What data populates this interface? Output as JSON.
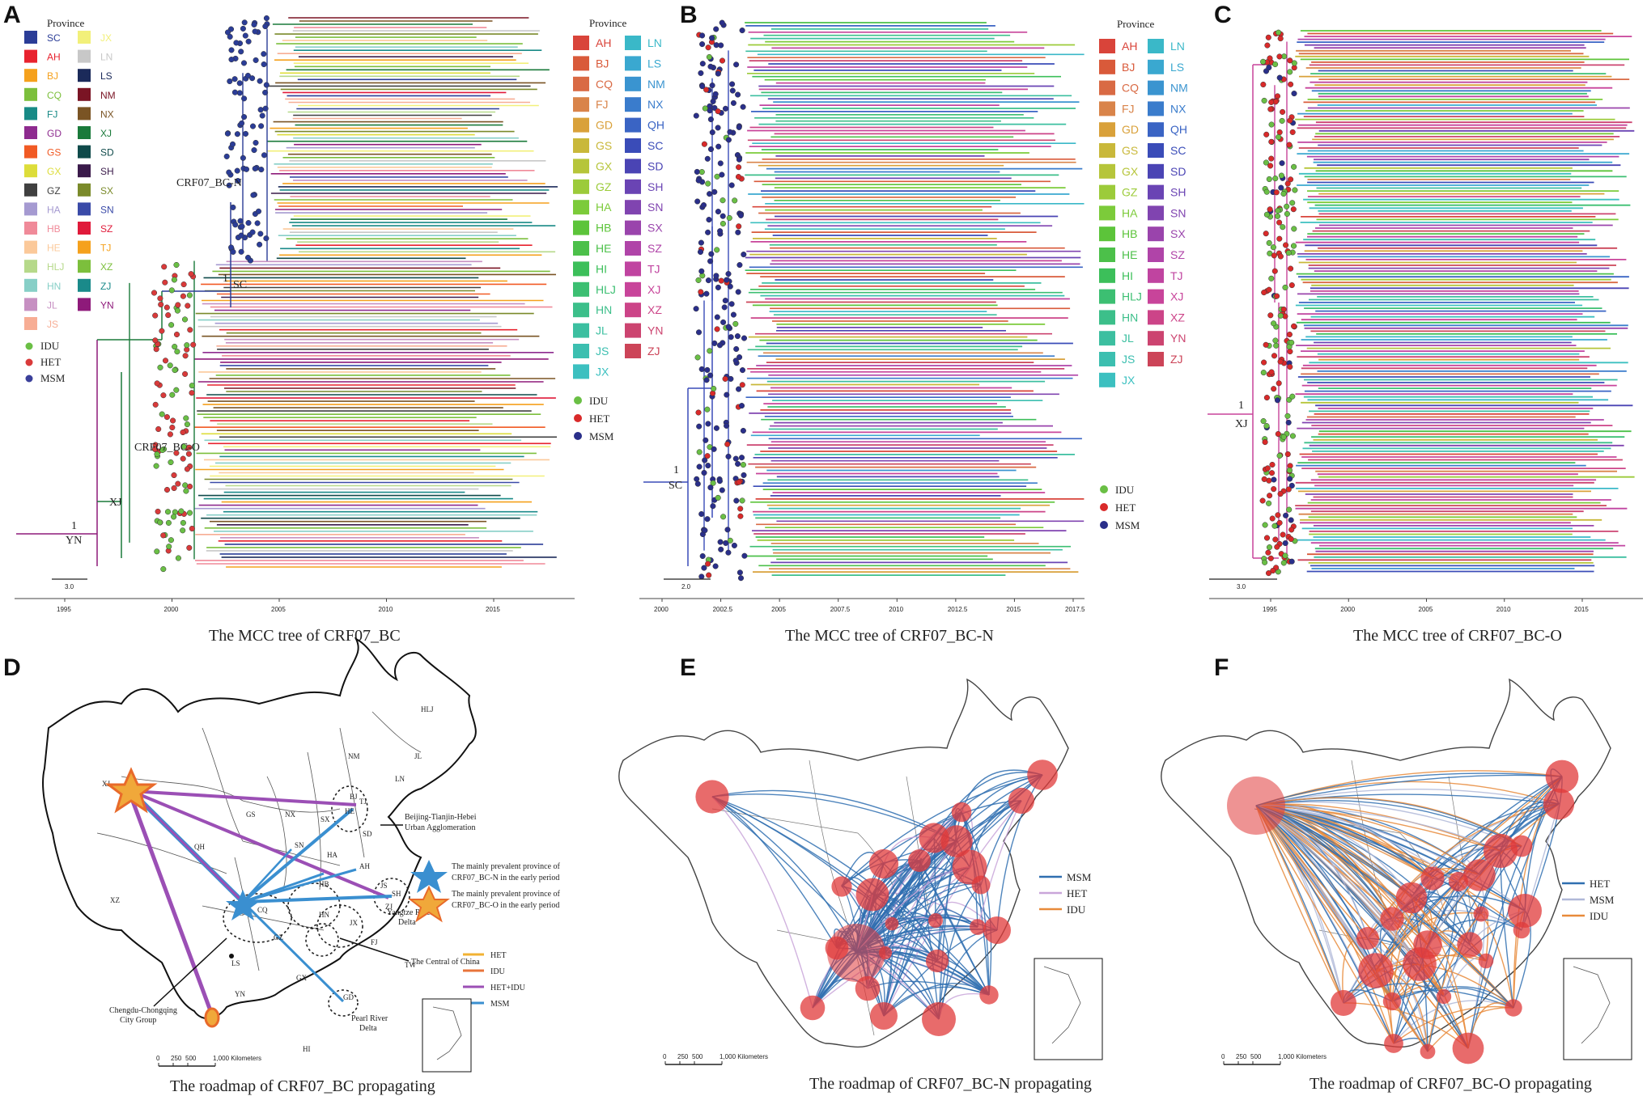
{
  "panels": {
    "A": {
      "letter": "A",
      "caption": "The MCC tree of CRF07_BC"
    },
    "B": {
      "letter": "B",
      "caption": "The MCC tree of CRF07_BC-N"
    },
    "C": {
      "letter": "C",
      "caption": "The MCC tree of CRF07_BC-O"
    },
    "D": {
      "letter": "D",
      "caption": "The roadmap of CRF07_BC propagating"
    },
    "E": {
      "letter": "E",
      "caption": "The roadmap of CRF07_BC-N propagating"
    },
    "F": {
      "letter": "F",
      "caption": "The roadmap of CRF07_BC-O propagating"
    }
  },
  "legendA": {
    "title": "Province",
    "col1": [
      {
        "code": "SC",
        "color": "#2b3d97"
      },
      {
        "code": "AH",
        "color": "#e8222e"
      },
      {
        "code": "BJ",
        "color": "#f5a11d"
      },
      {
        "code": "CQ",
        "color": "#7cbf3c"
      },
      {
        "code": "FJ",
        "color": "#188a86"
      },
      {
        "code": "GD",
        "color": "#8e2b8f"
      },
      {
        "code": "GS",
        "color": "#f15a24"
      },
      {
        "code": "GX",
        "color": "#dddd3a"
      },
      {
        "code": "GZ",
        "color": "#404040"
      },
      {
        "code": "HA",
        "color": "#a59ad1"
      },
      {
        "code": "HB",
        "color": "#f08a99"
      },
      {
        "code": "HE",
        "color": "#fbc99a"
      },
      {
        "code": "HLJ",
        "color": "#b6d98a"
      },
      {
        "code": "HN",
        "color": "#87cfc7"
      },
      {
        "code": "JL",
        "color": "#c790c2"
      },
      {
        "code": "JS",
        "color": "#f7ad94"
      }
    ],
    "col2": [
      {
        "code": "JX",
        "color": "#f2f07a"
      },
      {
        "code": "LN",
        "color": "#c8c8c8"
      },
      {
        "code": "LS",
        "color": "#1b2a5a"
      },
      {
        "code": "NM",
        "color": "#7a1424"
      },
      {
        "code": "NX",
        "color": "#7a5424"
      },
      {
        "code": "XJ",
        "color": "#1a7a3a"
      },
      {
        "code": "SD",
        "color": "#0f4a4a"
      },
      {
        "code": "SH",
        "color": "#3a1a4a"
      },
      {
        "code": "SX",
        "color": "#7a8a2a"
      },
      {
        "code": "SN",
        "color": "#3a4aa8"
      },
      {
        "code": "SZ",
        "color": "#e01a3a"
      },
      {
        "code": "TJ",
        "color": "#f5a11d"
      },
      {
        "code": "XZ",
        "color": "#7cbf3c"
      },
      {
        "code": "ZJ",
        "color": "#1a8a8a"
      },
      {
        "code": "YN",
        "color": "#8e1a7a"
      }
    ],
    "traits": [
      {
        "label": "IDU",
        "color": "#6abf45"
      },
      {
        "label": "HET",
        "color": "#d93a3a"
      },
      {
        "label": "MSM",
        "color": "#3a3f9a"
      }
    ]
  },
  "legendMid": {
    "title": "Province",
    "col1": [
      {
        "code": "AH",
        "color": "#d9443a"
      },
      {
        "code": "BJ",
        "color": "#d95a3a"
      },
      {
        "code": "CQ",
        "color": "#d96a44"
      },
      {
        "code": "FJ",
        "color": "#d9844a"
      },
      {
        "code": "GD",
        "color": "#d9a13a"
      },
      {
        "code": "GS",
        "color": "#c9b83a"
      },
      {
        "code": "GX",
        "color": "#b6c53a"
      },
      {
        "code": "GZ",
        "color": "#9ccb3a"
      },
      {
        "code": "HA",
        "color": "#7ccb3a"
      },
      {
        "code": "HB",
        "color": "#5cc43a"
      },
      {
        "code": "HE",
        "color": "#4cc04a"
      },
      {
        "code": "HI",
        "color": "#3cbf5a"
      },
      {
        "code": "HLJ",
        "color": "#3cbf72"
      },
      {
        "code": "HN",
        "color": "#3cbf8a"
      },
      {
        "code": "JL",
        "color": "#3cbfa0"
      },
      {
        "code": "JS",
        "color": "#3cbfb0"
      },
      {
        "code": "JX",
        "color": "#3cc0c0"
      }
    ],
    "col2": [
      {
        "code": "LN",
        "color": "#3ab8c8"
      },
      {
        "code": "LS",
        "color": "#3aa8d0"
      },
      {
        "code": "NM",
        "color": "#3a94d0"
      },
      {
        "code": "NX",
        "color": "#3a7ccc"
      },
      {
        "code": "QH",
        "color": "#3a64c4"
      },
      {
        "code": "SC",
        "color": "#3a4cb8"
      },
      {
        "code": "SD",
        "color": "#4a44b4"
      },
      {
        "code": "SH",
        "color": "#6a44b4"
      },
      {
        "code": "SN",
        "color": "#8044b0"
      },
      {
        "code": "SX",
        "color": "#9a44ac"
      },
      {
        "code": "SZ",
        "color": "#b044a8"
      },
      {
        "code": "TJ",
        "color": "#c044a0"
      },
      {
        "code": "XJ",
        "color": "#c8449a"
      },
      {
        "code": "XZ",
        "color": "#cc4488"
      },
      {
        "code": "YN",
        "color": "#cc4470"
      },
      {
        "code": "ZJ",
        "color": "#cc4458"
      }
    ],
    "traits": [
      {
        "label": "IDU",
        "color": "#6abf45"
      },
      {
        "label": "HET",
        "color": "#d92a2a"
      },
      {
        "label": "MSM",
        "color": "#2a2f8a"
      }
    ]
  },
  "treeLabels": {
    "a_crf_n": "CRF07_BC-N",
    "a_crf_o": "CRF07_BC-O",
    "a_sc_one": "1",
    "a_sc": "SC",
    "a_xj": "XJ",
    "a_yn_one": "1",
    "a_yn": "YN",
    "b_one": "1",
    "b_sc": "SC",
    "c_one": "1",
    "c_xj": "XJ"
  },
  "axes": {
    "A": {
      "ticks": [
        "1995",
        "2000",
        "2005",
        "2010",
        "2015"
      ],
      "scale": "3.0"
    },
    "B": {
      "ticks": [
        "2000",
        "2002.5",
        "2005",
        "2007.5",
        "2010",
        "2012.5",
        "2015",
        "2017.5"
      ],
      "scale": "2.0"
    },
    "C": {
      "ticks": [
        "1995",
        "2000",
        "2005",
        "2010",
        "2015"
      ],
      "scale": "3.0"
    }
  },
  "mapD": {
    "provinces": [
      "HLJ",
      "JL",
      "LN",
      "NM",
      "BJ",
      "TJ",
      "HE",
      "SD",
      "SX",
      "NX",
      "GS",
      "QH",
      "SN",
      "HA",
      "XJ",
      "XZ",
      "SC",
      "CQ",
      "HB",
      "AH",
      "JS",
      "SH",
      "ZJ",
      "HN",
      "JX",
      "FJ",
      "TW",
      "GZ",
      "YN",
      "LS",
      "GX",
      "GD",
      "HI"
    ],
    "annotations": {
      "bth": "Beijing-Tianjin-Hebei",
      "bth2": "Urban Agglomeration",
      "yrd": "Yangtze River",
      "yrd2": "Delta",
      "central": "The Central of China",
      "cc": "Chengdu-Chongqing",
      "cc2": "City Group",
      "prd": "Pearl River",
      "prd2": "Delta"
    },
    "starLegend": {
      "n1": "The mainly prevalent province of",
      "n2": "CRF07_BC-N in the early period",
      "o1": "The mainly prevalent province of",
      "o2": "CRF07_BC-O in the early period"
    },
    "routeLegend": [
      {
        "label": "HET",
        "color": "#f2b233"
      },
      {
        "label": "IDU",
        "color": "#e8743a"
      },
      {
        "label": "HET+IDU",
        "color": "#9b4fb5"
      },
      {
        "label": "MSM",
        "color": "#3a8fd0"
      }
    ],
    "scalebar": [
      "0",
      "250",
      "500",
      "1,000 Kilometers"
    ]
  },
  "mapE": {
    "legend": [
      {
        "label": "MSM",
        "color": "#2f6fb0"
      },
      {
        "label": "HET",
        "color": "#c9a6d9"
      },
      {
        "label": "IDU",
        "color": "#e88a3a"
      }
    ],
    "scalebar": [
      "0",
      "250",
      "500",
      "1,000 Kilometers"
    ]
  },
  "mapF": {
    "legend": [
      {
        "label": "HET",
        "color": "#2f6fb0"
      },
      {
        "label": "MSM",
        "color": "#b0b8d8"
      },
      {
        "label": "IDU",
        "color": "#e88a3a"
      }
    ],
    "scalebar": [
      "0",
      "250",
      "500",
      "1,000 Kilometers"
    ]
  }
}
